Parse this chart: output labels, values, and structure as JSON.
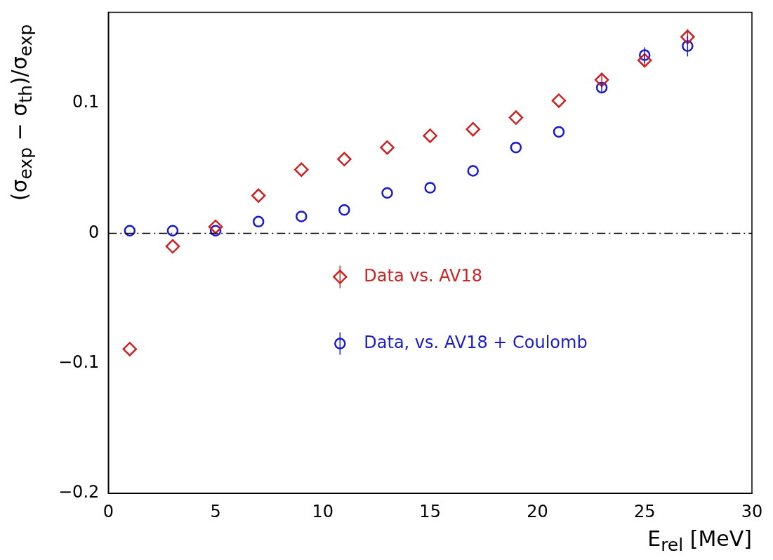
{
  "chart_data": {
    "type": "scatter",
    "xlabel": "E$_{rel}$ [MeV]",
    "ylabel": "(σ$_{exp}$ − σ$_{th}$)/σ$_{exp}$",
    "x": [
      1,
      3,
      5,
      7,
      9,
      11,
      13,
      15,
      17,
      19,
      21,
      23,
      25,
      27
    ],
    "series": [
      {
        "name": "Data vs. AV18",
        "color": "#cc2222",
        "marker": "diamond",
        "values": [
          -0.089,
          -0.01,
          0.005,
          0.029,
          0.049,
          0.057,
          0.066,
          0.075,
          0.08,
          0.089,
          0.102,
          0.118,
          0.133,
          0.151
        ],
        "errors": [
          null,
          null,
          null,
          null,
          null,
          null,
          null,
          null,
          null,
          null,
          null,
          0.004,
          0.005,
          0.006
        ]
      },
      {
        "name": "Data, vs. AV18 + Coulomb",
        "color": "#1a1acc",
        "marker": "circle",
        "values": [
          0.002,
          0.002,
          0.002,
          0.009,
          0.013,
          0.018,
          0.031,
          0.035,
          0.048,
          0.066,
          0.078,
          0.112,
          0.137,
          0.144
        ],
        "errors": [
          null,
          null,
          null,
          null,
          null,
          null,
          null,
          null,
          null,
          null,
          null,
          0.004,
          0.006,
          0.008
        ]
      }
    ],
    "xlim": [
      0,
      30
    ],
    "xticks": [
      0,
      5,
      10,
      15,
      20,
      25,
      30
    ],
    "ylim": [
      -0.2,
      0.17
    ],
    "yticks": [
      -0.2,
      -0.1,
      0,
      0.1
    ],
    "ref_lines": [
      {
        "axis": "y",
        "value": 0,
        "color": "#000000",
        "line_style": "dashdot"
      }
    ],
    "grid": false,
    "legend": "bottom"
  }
}
